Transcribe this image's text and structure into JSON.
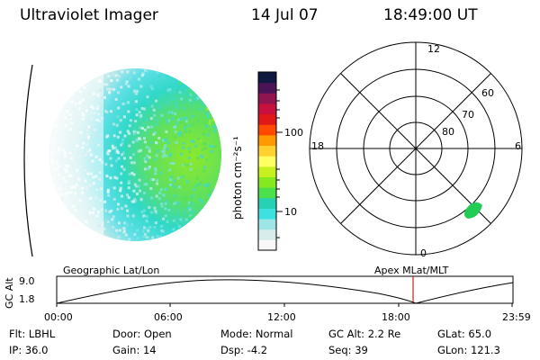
{
  "header": {
    "instrument": "Ultraviolet Imager",
    "date": "14 Jul 07",
    "time": "18:49:00 UT"
  },
  "colorbar": {
    "unit_label": "photon cm⁻²s⁻¹",
    "ticks": [
      "100",
      "10"
    ],
    "colors": [
      "#f8f8f8",
      "#d8ecec",
      "#9ee6e6",
      "#3ee0e0",
      "#26d2b2",
      "#4ce04c",
      "#86e81e",
      "#c6f01e",
      "#ffff64",
      "#ffd230",
      "#ff9a00",
      "#ff4a00",
      "#e01818",
      "#c8103e",
      "#901450",
      "#4a1456",
      "#101a40"
    ]
  },
  "polar_plot": {
    "mlt_labels": {
      "top": "12",
      "left": "18",
      "right": "6",
      "bottom": "0"
    },
    "lat_labels": [
      "60",
      "70",
      "80"
    ],
    "colors": {
      "grid": "#000000",
      "spot": "#22cc55"
    }
  },
  "timeline": {
    "y_axis_label": "GC Alt",
    "ticks_y": [
      "9.0",
      "1.8"
    ],
    "left_title": "Geographic Lat/Lon",
    "right_title": "Apex  MLat/MLT",
    "x_ticks": [
      "00:00",
      "06:00",
      "12:00",
      "18:00",
      "23:59"
    ],
    "marker_color": "#cc2222"
  },
  "info": {
    "flt": "Flt: LBHL",
    "ip": "IP: 36.0",
    "door": "Door: Open",
    "gain": "Gain: 14",
    "mode": "Mode: Normal",
    "dsp": "Dsp:    -4.2",
    "gc_alt": "GC Alt: 2.2 Re",
    "seq": "Seq: 39",
    "glat": "GLat:  65.0",
    "glon": "GLon: 121.3"
  }
}
